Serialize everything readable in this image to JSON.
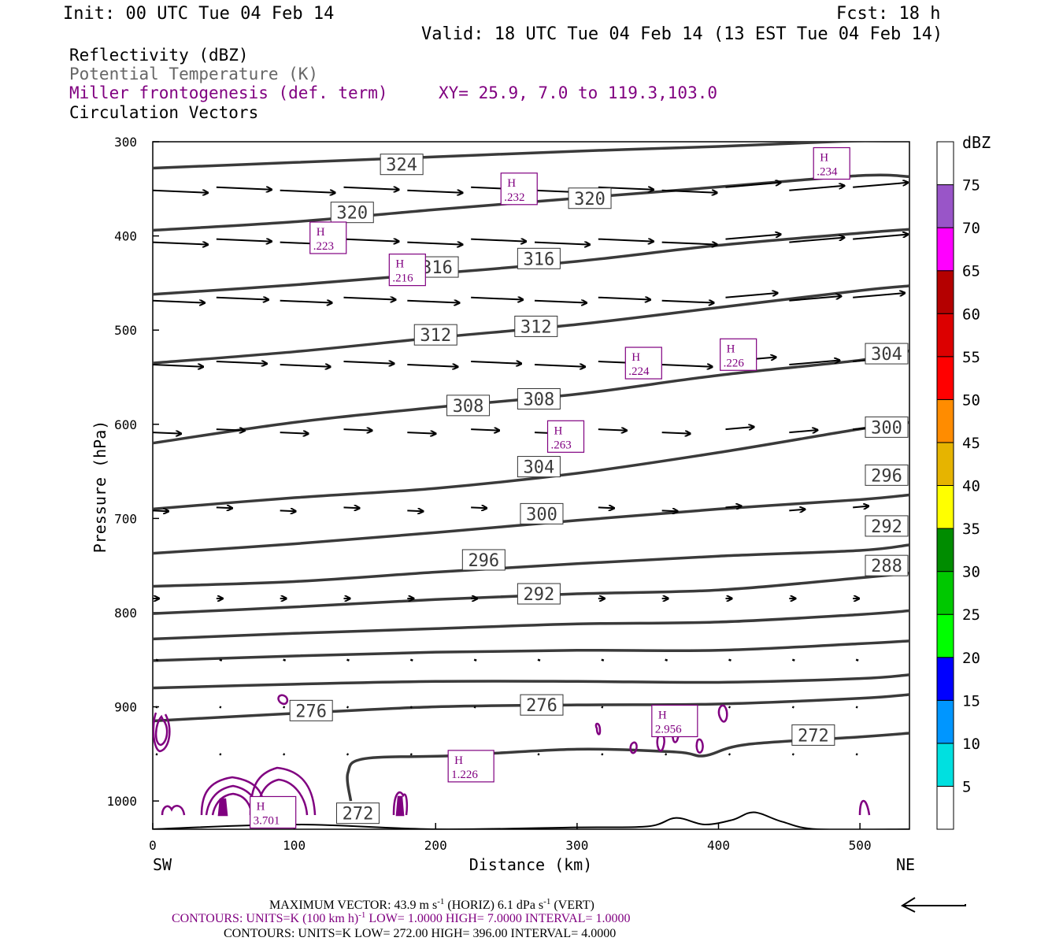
{
  "header": {
    "init": "Init: 00 UTC Tue 04 Feb 14",
    "fcst": "Fcst:   18 h",
    "valid": "Valid: 18 UTC Tue 04 Feb 14 (13 EST Tue 04 Feb 14)"
  },
  "fields": {
    "reflectivity": "Reflectivity (dBZ)",
    "theta": "Potential Temperature (K)",
    "frontogenesis": "Miller frontogenesis (def. term)",
    "xy": "XY=  25.9,  7.0 to 119.3,103.0",
    "vectors": "Circulation Vectors"
  },
  "colors": {
    "theta": "#3a3a3a",
    "frontogenesis": "#800080",
    "vectors": "#000000",
    "text": "#000000",
    "theta_label": "#3a3a3a"
  },
  "colorbar": {
    "title": "dBZ",
    "labels": [
      "5",
      "10",
      "15",
      "20",
      "25",
      "30",
      "35",
      "40",
      "45",
      "50",
      "55",
      "60",
      "65",
      "70",
      "75"
    ],
    "colors": [
      "#ffffff",
      "#00e0e0",
      "#0096ff",
      "#0000ff",
      "#00ff00",
      "#00c800",
      "#008c00",
      "#ffff00",
      "#e6b400",
      "#ff8c00",
      "#ff0000",
      "#dc0000",
      "#b40000",
      "#ff00ff",
      "#9955c8",
      "#ffffff"
    ]
  },
  "footer": {
    "max_vector_prefix": "MAXIMUM VECTOR:  43.9 m s",
    "max_vector_sup": "-1",
    "max_vector_mid": " (HORIZ)         6.1 dPa s",
    "max_vector_sup2": "-1",
    "max_vector_suffix": " (VERT)",
    "contours1_prefix": "CONTOURS:  UNITS=K (100 km h)",
    "contours1_sup": "-1",
    "contours1_suffix": "  LOW=   1.0000        HIGH=   7.0000       INTERVAL=    1.0000",
    "contours2": "CONTOURS:  UNITS=K  LOW=  272.00        HIGH=  396.00        INTERVAL=    4.0000"
  },
  "chart_data": {
    "type": "cross-section",
    "xlabel": "Distance (km)",
    "ylabel": "Pressure (hPa)",
    "xlim": [
      0,
      535
    ],
    "ylim": [
      1030,
      300
    ],
    "x_ticks": [
      "0",
      "100",
      "200",
      "300",
      "400",
      "500"
    ],
    "x_tick_values": [
      0,
      100,
      200,
      300,
      400,
      500
    ],
    "y_ticks": [
      "300",
      "400",
      "500",
      "600",
      "700",
      "800",
      "900",
      "1000"
    ],
    "y_tick_values": [
      300,
      400,
      500,
      600,
      700,
      800,
      900,
      1000
    ],
    "left_end": "SW",
    "right_end": "NE",
    "theta_lines": [
      {
        "points": [
          [
            0,
            328
          ],
          [
            100,
            322
          ],
          [
            200,
            316
          ],
          [
            300,
            310
          ],
          [
            400,
            305
          ],
          [
            480,
            300
          ],
          [
            535,
            298
          ]
        ]
      },
      {
        "points": [
          [
            0,
            394
          ],
          [
            100,
            385
          ],
          [
            200,
            372
          ],
          [
            300,
            360
          ],
          [
            400,
            348
          ],
          [
            500,
            336
          ],
          [
            535,
            337
          ]
        ]
      },
      {
        "points": [
          [
            0,
            462
          ],
          [
            100,
            452
          ],
          [
            200,
            440
          ],
          [
            300,
            427
          ],
          [
            400,
            410
          ],
          [
            500,
            397
          ],
          [
            535,
            393
          ]
        ]
      },
      {
        "points": [
          [
            0,
            535
          ],
          [
            100,
            523
          ],
          [
            200,
            508
          ],
          [
            300,
            494
          ],
          [
            400,
            476
          ],
          [
            500,
            458
          ],
          [
            535,
            453
          ]
        ]
      },
      {
        "points": [
          [
            0,
            620
          ],
          [
            100,
            598
          ],
          [
            200,
            582
          ],
          [
            300,
            568
          ],
          [
            400,
            548
          ],
          [
            500,
            532
          ],
          [
            535,
            522
          ]
        ]
      },
      {
        "points": [
          [
            0,
            690
          ],
          [
            100,
            678
          ],
          [
            200,
            668
          ],
          [
            300,
            652
          ],
          [
            400,
            630
          ],
          [
            500,
            605
          ],
          [
            535,
            598
          ]
        ]
      },
      {
        "points": [
          [
            0,
            737
          ],
          [
            100,
            727
          ],
          [
            200,
            715
          ],
          [
            300,
            702
          ],
          [
            400,
            690
          ],
          [
            500,
            680
          ],
          [
            535,
            675
          ]
        ]
      },
      {
        "points": [
          [
            0,
            772
          ],
          [
            100,
            767
          ],
          [
            200,
            757
          ],
          [
            300,
            748
          ],
          [
            400,
            740
          ],
          [
            500,
            734
          ],
          [
            535,
            728
          ]
        ]
      },
      {
        "points": [
          [
            0,
            801
          ],
          [
            100,
            794
          ],
          [
            200,
            786
          ],
          [
            300,
            780
          ],
          [
            400,
            776
          ],
          [
            500,
            763
          ],
          [
            535,
            758
          ]
        ]
      },
      {
        "points": [
          [
            0,
            828
          ],
          [
            100,
            822
          ],
          [
            200,
            817
          ],
          [
            300,
            812
          ],
          [
            400,
            810
          ],
          [
            500,
            802
          ],
          [
            535,
            798
          ]
        ]
      },
      {
        "points": [
          [
            0,
            851
          ],
          [
            100,
            846
          ],
          [
            200,
            842
          ],
          [
            300,
            840
          ],
          [
            400,
            840
          ],
          [
            500,
            833
          ],
          [
            535,
            830
          ]
        ]
      },
      {
        "points": [
          [
            0,
            880
          ],
          [
            100,
            876
          ],
          [
            200,
            873
          ],
          [
            300,
            873
          ],
          [
            400,
            874
          ],
          [
            500,
            870
          ],
          [
            535,
            866
          ]
        ]
      },
      {
        "points": [
          [
            0,
            915
          ],
          [
            100,
            907
          ],
          [
            200,
            900
          ],
          [
            300,
            898
          ],
          [
            400,
            897
          ],
          [
            500,
            891
          ],
          [
            535,
            887
          ]
        ]
      },
      {
        "points": [
          [
            140,
            1000
          ],
          [
            138,
            970
          ],
          [
            150,
            955
          ],
          [
            210,
            952
          ],
          [
            300,
            945
          ],
          [
            370,
            948
          ],
          [
            390,
            952
          ],
          [
            420,
            940
          ],
          [
            500,
            932
          ],
          [
            535,
            928
          ]
        ]
      },
      {
        "points": [
          [
            0,
            1030
          ],
          [
            100,
            1025
          ],
          [
            200,
            1030
          ],
          [
            300,
            1028
          ],
          [
            350,
            1027
          ],
          [
            370,
            1018
          ],
          [
            390,
            1025
          ],
          [
            410,
            1020
          ],
          [
            425,
            1012
          ],
          [
            445,
            1022
          ],
          [
            470,
            1030
          ],
          [
            535,
            1030
          ]
        ]
      }
    ],
    "theta_labels": [
      {
        "text": "324",
        "x": 176,
        "p": 324
      },
      {
        "text": "320",
        "x": 141,
        "p": 375
      },
      {
        "text": "320",
        "x": 309,
        "p": 360
      },
      {
        "text": "316",
        "x": 201,
        "p": 433
      },
      {
        "text": "316",
        "x": 273,
        "p": 424
      },
      {
        "text": "312",
        "x": 200,
        "p": 505
      },
      {
        "text": "312",
        "x": 271,
        "p": 496
      },
      {
        "text": "308",
        "x": 223,
        "p": 580
      },
      {
        "text": "308",
        "x": 273,
        "p": 573
      },
      {
        "text": "304",
        "x": 273,
        "p": 645
      },
      {
        "text": "304",
        "x": 525,
        "p": 525
      },
      {
        "text": "300",
        "x": 275,
        "p": 695
      },
      {
        "text": "300",
        "x": 525,
        "p": 603
      },
      {
        "text": "296",
        "x": 234,
        "p": 744
      },
      {
        "text": "296",
        "x": 525,
        "p": 654
      },
      {
        "text": "292",
        "x": 273,
        "p": 780
      },
      {
        "text": "292",
        "x": 525,
        "p": 708
      },
      {
        "text": "288",
        "x": 525,
        "p": 750
      },
      {
        "text": "276",
        "x": 112,
        "p": 904
      },
      {
        "text": "276",
        "x": 275,
        "p": 898
      },
      {
        "text": "272",
        "x": 467,
        "p": 930
      },
      {
        "text": "272",
        "x": 145,
        "p": 1013
      }
    ],
    "highs": [
      {
        "label": "H",
        "value": ".232",
        "x": 259,
        "p": 350
      },
      {
        "label": "H",
        "value": ".234",
        "x": 480,
        "p": 323
      },
      {
        "label": "H",
        "value": ".223",
        "x": 124,
        "p": 402
      },
      {
        "label": "H",
        "value": ".216",
        "x": 180,
        "p": 436
      },
      {
        "label": "H",
        "value": ".224",
        "x": 347,
        "p": 535
      },
      {
        "label": "H",
        "value": ".226",
        "x": 414,
        "p": 526
      },
      {
        "label": "H",
        "value": ".263",
        "x": 292,
        "p": 613
      },
      {
        "label": "H",
        "value": "2.956",
        "x": 369,
        "p": 915
      },
      {
        "label": "H",
        "value": "1.226",
        "x": 225,
        "p": 963
      },
      {
        "label": "H",
        "value": "3.701",
        "x": 85,
        "p": 1012
      }
    ],
    "vector_levels": [
      350,
      405,
      467,
      535,
      607,
      690,
      785,
      850,
      900,
      950
    ],
    "vector_x": [
      0,
      45,
      90,
      135,
      180,
      225,
      270,
      315,
      360,
      405,
      450,
      495
    ],
    "vector_lengths": [
      70,
      70,
      66,
      64,
      36,
      20,
      8,
      3,
      2,
      1
    ],
    "max_vector": {
      "horiz_ms": 43.9,
      "vert_dpas": 6.1
    }
  }
}
